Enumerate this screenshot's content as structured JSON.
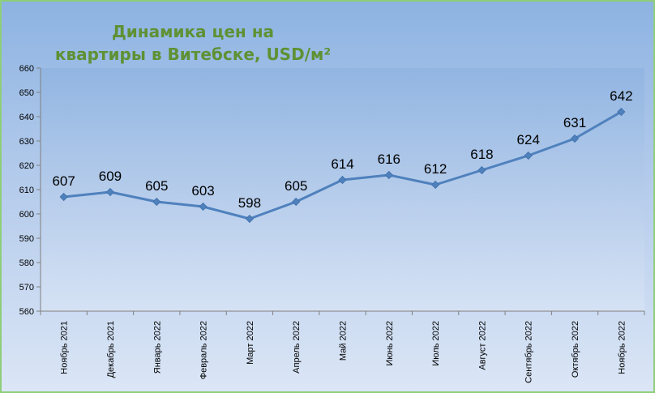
{
  "chart_data": {
    "type": "line",
    "title": [
      "Динамика цен на",
      "квартиры в Витебске, USD/м²"
    ],
    "categories": [
      "Ноябрь 2021",
      "Декабрь 2021",
      "Январь 2022",
      "Февраль 2022",
      "Март 2022",
      "Апрель 2022",
      "Май 2022",
      "Июнь 2022",
      "Июль 2022",
      "Август 2022",
      "Сентябрь 2022",
      "Октябрь 2022",
      "Ноябрь 2022"
    ],
    "series": [
      {
        "values": [
          607,
          609,
          605,
          603,
          598,
          605,
          614,
          616,
          612,
          618,
          624,
          631,
          642
        ],
        "color": "#4f81bd"
      }
    ],
    "ylim": [
      560,
      660
    ],
    "yticks": [
      560,
      570,
      580,
      590,
      600,
      610,
      620,
      630,
      640,
      650,
      660
    ],
    "grid": false,
    "legend": "none"
  }
}
